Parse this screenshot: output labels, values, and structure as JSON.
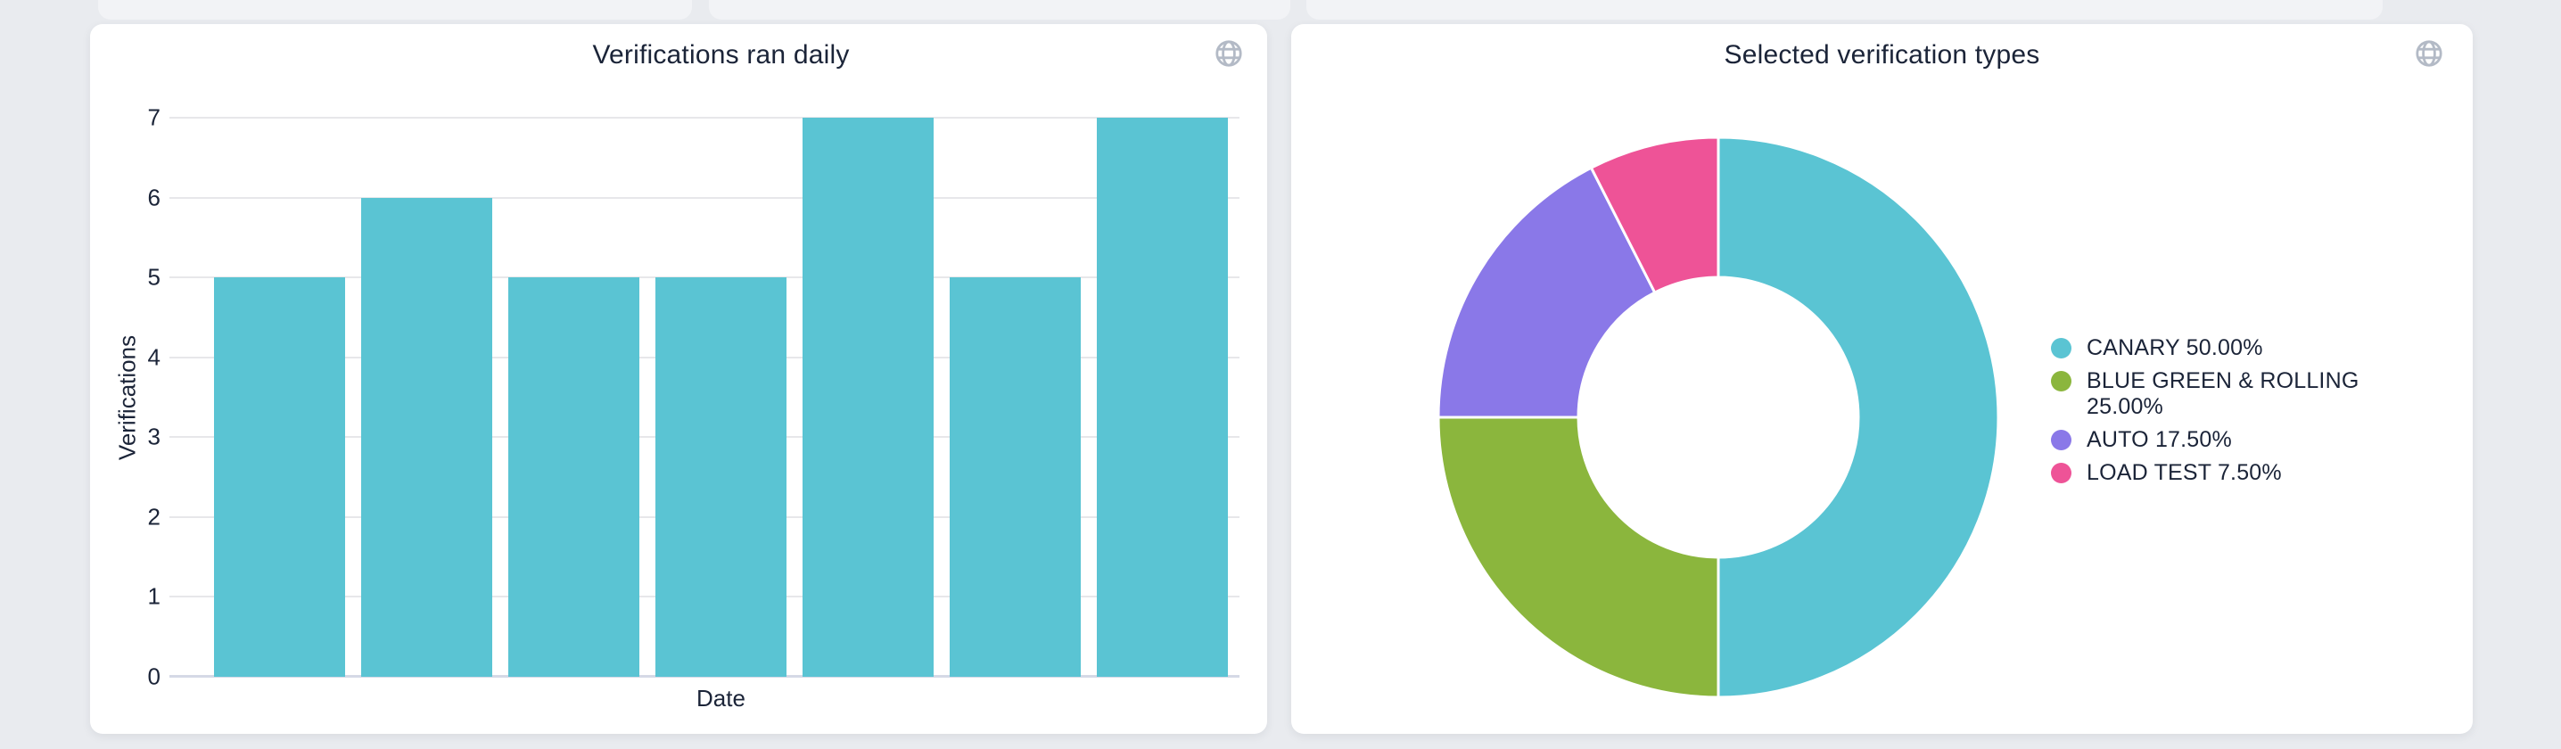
{
  "icons": {
    "globe": "globe-icon",
    "globe_color": "#b3bac6"
  },
  "colors": {
    "page_background": "#e9ebef",
    "card_background": "#ffffff",
    "text_navy": "#1b2438",
    "gridline": "#e7e7ea",
    "axis_baseline": "#d5d9e6",
    "teal": "#5ac4d3",
    "green": "#8bb63d",
    "purple": "#8a78e8",
    "pink": "#ee5397"
  },
  "chart_data": [
    {
      "id": "verifications-ran-daily",
      "type": "bar",
      "title": "Verifications ran daily",
      "xlabel": "Date",
      "ylabel": "Verifications",
      "values": [
        5,
        6,
        5,
        5,
        7,
        5,
        7
      ],
      "x_tick_labels_visible": false,
      "yticks": [
        0,
        1,
        2,
        3,
        4,
        5,
        6,
        7
      ],
      "ylim": [
        0,
        7
      ],
      "grid": true,
      "bar_color": "#5ac4d3"
    },
    {
      "id": "selected-verification-types",
      "type": "pie",
      "donut": true,
      "title": "Selected verification types",
      "legend_position": "right",
      "start_angle_deg": 0,
      "slices": [
        {
          "label": "CANARY",
          "pct": 50.0,
          "color": "#5ac4d3",
          "legend_text": "CANARY 50.00%"
        },
        {
          "label": "BLUE GREEN & ROLLING",
          "pct": 25.0,
          "color": "#8bb63d",
          "legend_text": "BLUE GREEN & ROLLING 25.00%"
        },
        {
          "label": "AUTO",
          "pct": 17.5,
          "color": "#8a78e8",
          "legend_text": "AUTO 17.50%"
        },
        {
          "label": "LOAD TEST",
          "pct": 7.5,
          "color": "#ee5397",
          "legend_text": "LOAD TEST 7.50%"
        }
      ]
    }
  ]
}
